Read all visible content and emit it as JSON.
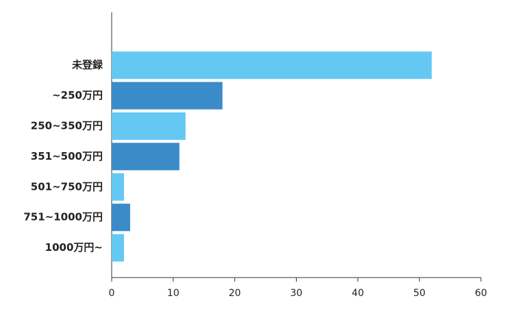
{
  "chart_data": {
    "type": "barh",
    "categories": [
      "未登録",
      "~250万円",
      "250~350万円",
      "351~500万円",
      "501~750万円",
      "751~1000万円",
      "1000万円~"
    ],
    "values": [
      52,
      18,
      12,
      11,
      2,
      3,
      2
    ],
    "colors": [
      "#64c8f2",
      "#3a8cc8",
      "#64c8f2",
      "#3a8cc8",
      "#64c8f2",
      "#3a8cc8",
      "#64c8f2"
    ],
    "xlim": [
      0,
      60
    ],
    "xticks": [
      0,
      10,
      20,
      30,
      40,
      50,
      60
    ]
  }
}
